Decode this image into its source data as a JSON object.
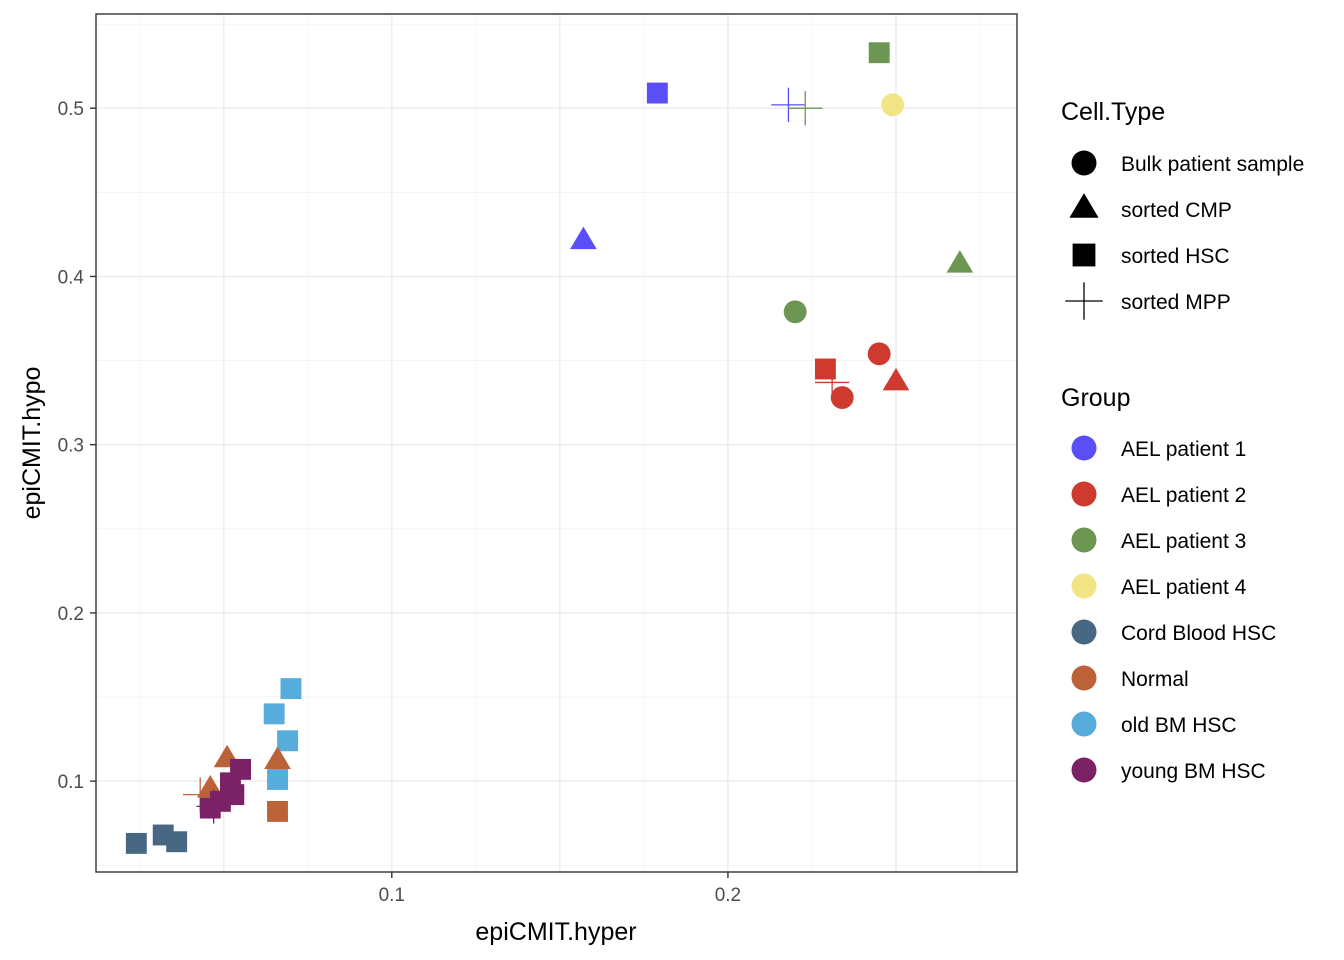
{
  "chart_data": {
    "type": "scatter",
    "title": "",
    "xlabel": "epiCMIT.hyper",
    "ylabel": "epiCMIT.hypo",
    "xlim": [
      0.012,
      0.286
    ],
    "ylim": [
      0.046,
      0.556
    ],
    "x_ticks": [
      {
        "value": 0.1,
        "label": "0.1"
      },
      {
        "value": 0.2,
        "label": "0.2"
      }
    ],
    "y_ticks": [
      {
        "value": 0.1,
        "label": "0.1"
      },
      {
        "value": 0.2,
        "label": "0.2"
      },
      {
        "value": 0.3,
        "label": "0.3"
      },
      {
        "value": 0.4,
        "label": "0.4"
      },
      {
        "value": 0.5,
        "label": "0.5"
      }
    ],
    "grid": true,
    "legend_position": "right",
    "legends": {
      "shape": {
        "title": "Cell.Type",
        "items": [
          {
            "label": "Bulk patient sample",
            "shape": "circle"
          },
          {
            "label": "sorted CMP",
            "shape": "triangle"
          },
          {
            "label": "sorted HSC",
            "shape": "square"
          },
          {
            "label": "sorted MPP",
            "shape": "plus"
          }
        ]
      },
      "color": {
        "title": "Group",
        "items": [
          {
            "label": "AEL patient 1",
            "color": "#5a4ff7"
          },
          {
            "label": "AEL patient 2",
            "color": "#cf3a2f"
          },
          {
            "label": "AEL patient 3",
            "color": "#6e9653"
          },
          {
            "label": "AEL patient 4",
            "color": "#f2e485"
          },
          {
            "label": "Cord Blood HSC",
            "color": "#476782"
          },
          {
            "label": "Normal",
            "color": "#bb6238"
          },
          {
            "label": "old BM HSC",
            "color": "#56acdb"
          },
          {
            "label": "young BM HSC",
            "color": "#7b2266"
          }
        ]
      }
    },
    "points": [
      {
        "x": 0.179,
        "y": 0.509,
        "group": "AEL patient 1",
        "shape": "square"
      },
      {
        "x": 0.157,
        "y": 0.421,
        "group": "AEL patient 1",
        "shape": "triangle"
      },
      {
        "x": 0.218,
        "y": 0.502,
        "group": "AEL patient 1",
        "shape": "plus"
      },
      {
        "x": 0.245,
        "y": 0.533,
        "group": "AEL patient 3",
        "shape": "square"
      },
      {
        "x": 0.223,
        "y": 0.5,
        "group": "AEL patient 3",
        "shape": "plus"
      },
      {
        "x": 0.22,
        "y": 0.379,
        "group": "AEL patient 3",
        "shape": "circle"
      },
      {
        "x": 0.269,
        "y": 0.407,
        "group": "AEL patient 3",
        "shape": "triangle"
      },
      {
        "x": 0.249,
        "y": 0.502,
        "group": "AEL patient 4",
        "shape": "circle"
      },
      {
        "x": 0.245,
        "y": 0.354,
        "group": "AEL patient 2",
        "shape": "circle"
      },
      {
        "x": 0.234,
        "y": 0.328,
        "group": "AEL patient 2",
        "shape": "circle"
      },
      {
        "x": 0.25,
        "y": 0.337,
        "group": "AEL patient 2",
        "shape": "triangle"
      },
      {
        "x": 0.229,
        "y": 0.345,
        "group": "AEL patient 2",
        "shape": "square"
      },
      {
        "x": 0.231,
        "y": 0.337,
        "group": "AEL patient 2",
        "shape": "plus"
      },
      {
        "x": 0.024,
        "y": 0.063,
        "group": "Cord Blood HSC",
        "shape": "square"
      },
      {
        "x": 0.032,
        "y": 0.068,
        "group": "Cord Blood HSC",
        "shape": "square"
      },
      {
        "x": 0.036,
        "y": 0.064,
        "group": "Cord Blood HSC",
        "shape": "square"
      },
      {
        "x": 0.07,
        "y": 0.155,
        "group": "old BM HSC",
        "shape": "square"
      },
      {
        "x": 0.065,
        "y": 0.14,
        "group": "old BM HSC",
        "shape": "square"
      },
      {
        "x": 0.069,
        "y": 0.124,
        "group": "old BM HSC",
        "shape": "square"
      },
      {
        "x": 0.066,
        "y": 0.101,
        "group": "old BM HSC",
        "shape": "square"
      },
      {
        "x": 0.051,
        "y": 0.113,
        "group": "Normal",
        "shape": "triangle"
      },
      {
        "x": 0.066,
        "y": 0.112,
        "group": "Normal",
        "shape": "triangle"
      },
      {
        "x": 0.046,
        "y": 0.095,
        "group": "Normal",
        "shape": "triangle"
      },
      {
        "x": 0.043,
        "y": 0.092,
        "group": "Normal",
        "shape": "plus"
      },
      {
        "x": 0.066,
        "y": 0.082,
        "group": "Normal",
        "shape": "square"
      },
      {
        "x": 0.047,
        "y": 0.085,
        "group": "young BM HSC",
        "shape": "plus"
      },
      {
        "x": 0.055,
        "y": 0.107,
        "group": "young BM HSC",
        "shape": "square"
      },
      {
        "x": 0.052,
        "y": 0.099,
        "group": "young BM HSC",
        "shape": "square"
      },
      {
        "x": 0.053,
        "y": 0.092,
        "group": "young BM HSC",
        "shape": "square"
      },
      {
        "x": 0.049,
        "y": 0.088,
        "group": "young BM HSC",
        "shape": "square"
      },
      {
        "x": 0.046,
        "y": 0.084,
        "group": "young BM HSC",
        "shape": "square"
      }
    ]
  }
}
